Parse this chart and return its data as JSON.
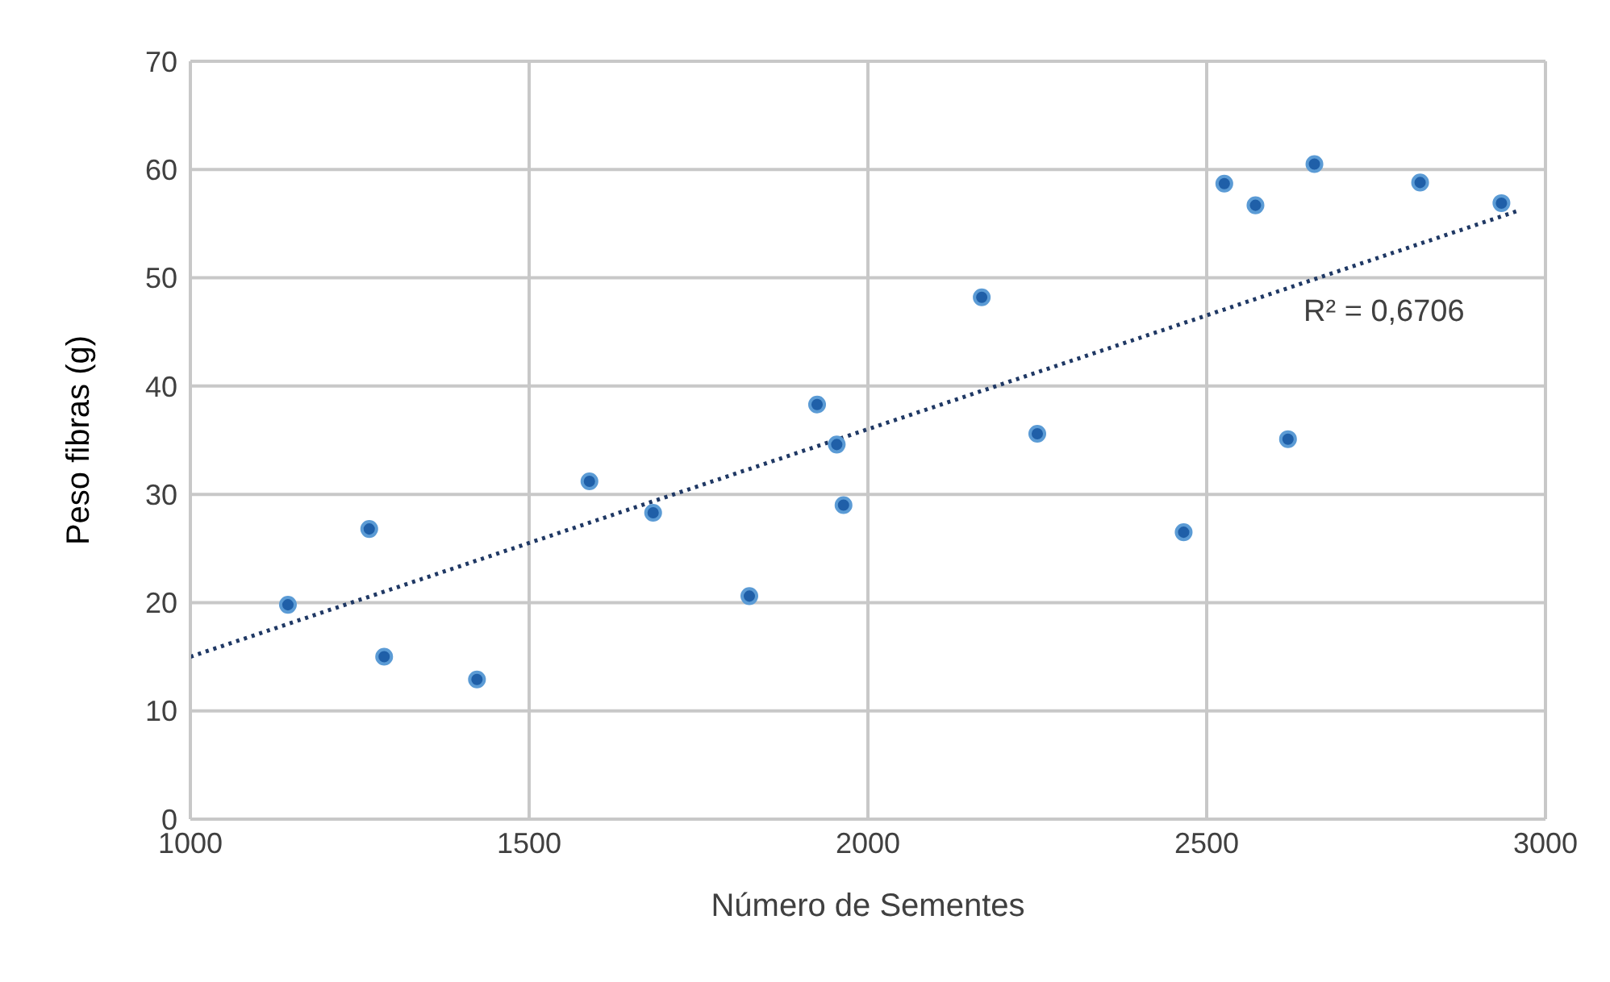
{
  "chart_data": {
    "type": "scatter",
    "xlabel": "Número de Sementes",
    "ylabel": "Peso fibras (g)",
    "x": [
      1144,
      1264,
      1286,
      1423,
      1589,
      1683,
      1825,
      1925,
      1954,
      1964,
      2168,
      2250,
      2466,
      2526,
      2572,
      2620,
      2659,
      2815,
      2935
    ],
    "series": [
      {
        "color": "#1f5fa8",
        "values": [
          19.8,
          26.8,
          15.0,
          12.9,
          31.2,
          28.3,
          20.6,
          38.3,
          34.6,
          29.0,
          48.2,
          35.6,
          26.5,
          58.7,
          56.7,
          35.1,
          60.5,
          58.8,
          56.9
        ],
        "marker": "circle"
      },
      {
        "type": "line",
        "color": "#1f3864",
        "x": [
          1000,
          2960
        ],
        "values": [
          15.0,
          56.2
        ],
        "line_style": "dotted",
        "marker": "none"
      }
    ],
    "xlim": [
      1000,
      3000
    ],
    "xticks": [
      1000,
      1500,
      2000,
      2500,
      3000
    ],
    "ylim": [
      0,
      70
    ],
    "yticks": [
      0,
      10,
      20,
      30,
      40,
      50,
      60,
      70
    ],
    "grid": true,
    "annotations": [
      "R² = 0,6706"
    ]
  }
}
